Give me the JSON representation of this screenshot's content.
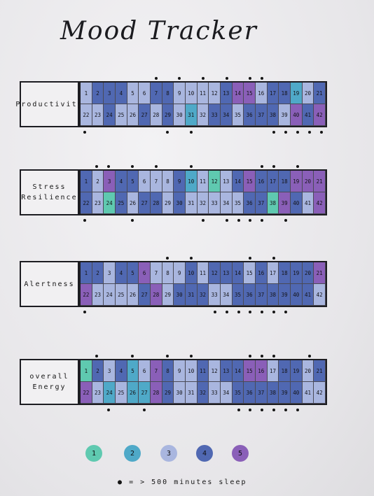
{
  "title": "Mood Tracker",
  "palette": {
    "1": "#5fc9b0",
    "2": "#4fa9c8",
    "3": "#a9b6df",
    "4": "#5068b2",
    "5": "#8a5fb8"
  },
  "sections": [
    {
      "label": "Productivity",
      "values": [
        3,
        4,
        4,
        4,
        3,
        3,
        4,
        4,
        3,
        3,
        3,
        3,
        4,
        5,
        5,
        3,
        4,
        4,
        2,
        3,
        4,
        3,
        3,
        4,
        3,
        3,
        4,
        3,
        4,
        3,
        2,
        3,
        4,
        4,
        3,
        4,
        4,
        4,
        3,
        5,
        4,
        5
      ],
      "dots_top": [
        7,
        9,
        11,
        13,
        15,
        16
      ],
      "dots_bottom": [
        1,
        8,
        10,
        17,
        18,
        19,
        20,
        21
      ]
    },
    {
      "label": "Stress\nResilience",
      "values": [
        4,
        3,
        5,
        4,
        4,
        3,
        3,
        3,
        4,
        2,
        3,
        1,
        3,
        4,
        5,
        4,
        4,
        4,
        5,
        5,
        5,
        4,
        3,
        1,
        4,
        3,
        4,
        4,
        3,
        4,
        3,
        3,
        3,
        3,
        3,
        4,
        4,
        1,
        5,
        4,
        3,
        5
      ],
      "dots_top": [
        2,
        3,
        5,
        7,
        10,
        16,
        17,
        19
      ],
      "dots_bottom": [
        1,
        5,
        11,
        13,
        14,
        15,
        16,
        18
      ]
    },
    {
      "label": "Alertness",
      "values": [
        4,
        4,
        3,
        4,
        4,
        5,
        3,
        3,
        3,
        4,
        3,
        4,
        4,
        4,
        3,
        4,
        3,
        4,
        4,
        4,
        5,
        5,
        3,
        3,
        3,
        3,
        4,
        5,
        3,
        4,
        4,
        4,
        3,
        3,
        4,
        4,
        4,
        4,
        4,
        4,
        4,
        3
      ],
      "dots_top": [
        8,
        10,
        15,
        17
      ],
      "dots_bottom": [
        1,
        12,
        13,
        14,
        15,
        16,
        17,
        18
      ]
    },
    {
      "label": "overall\nEnergy",
      "values": [
        1,
        4,
        3,
        4,
        2,
        3,
        5,
        4,
        3,
        3,
        4,
        3,
        4,
        4,
        5,
        5,
        3,
        4,
        4,
        3,
        4,
        5,
        3,
        2,
        3,
        2,
        2,
        5,
        4,
        3,
        3,
        4,
        3,
        3,
        4,
        4,
        4,
        4,
        4,
        4,
        3,
        3
      ],
      "dots_top": [
        2,
        5,
        8,
        10,
        15,
        16,
        17,
        20
      ],
      "dots_bottom": [
        3,
        6,
        14,
        15,
        16,
        17,
        18,
        19
      ]
    }
  ],
  "legend": {
    "scale": [
      "1",
      "2",
      "3",
      "4",
      "5"
    ],
    "dot_symbol": "●",
    "dot_text": "= > 500 minutes sleep"
  }
}
